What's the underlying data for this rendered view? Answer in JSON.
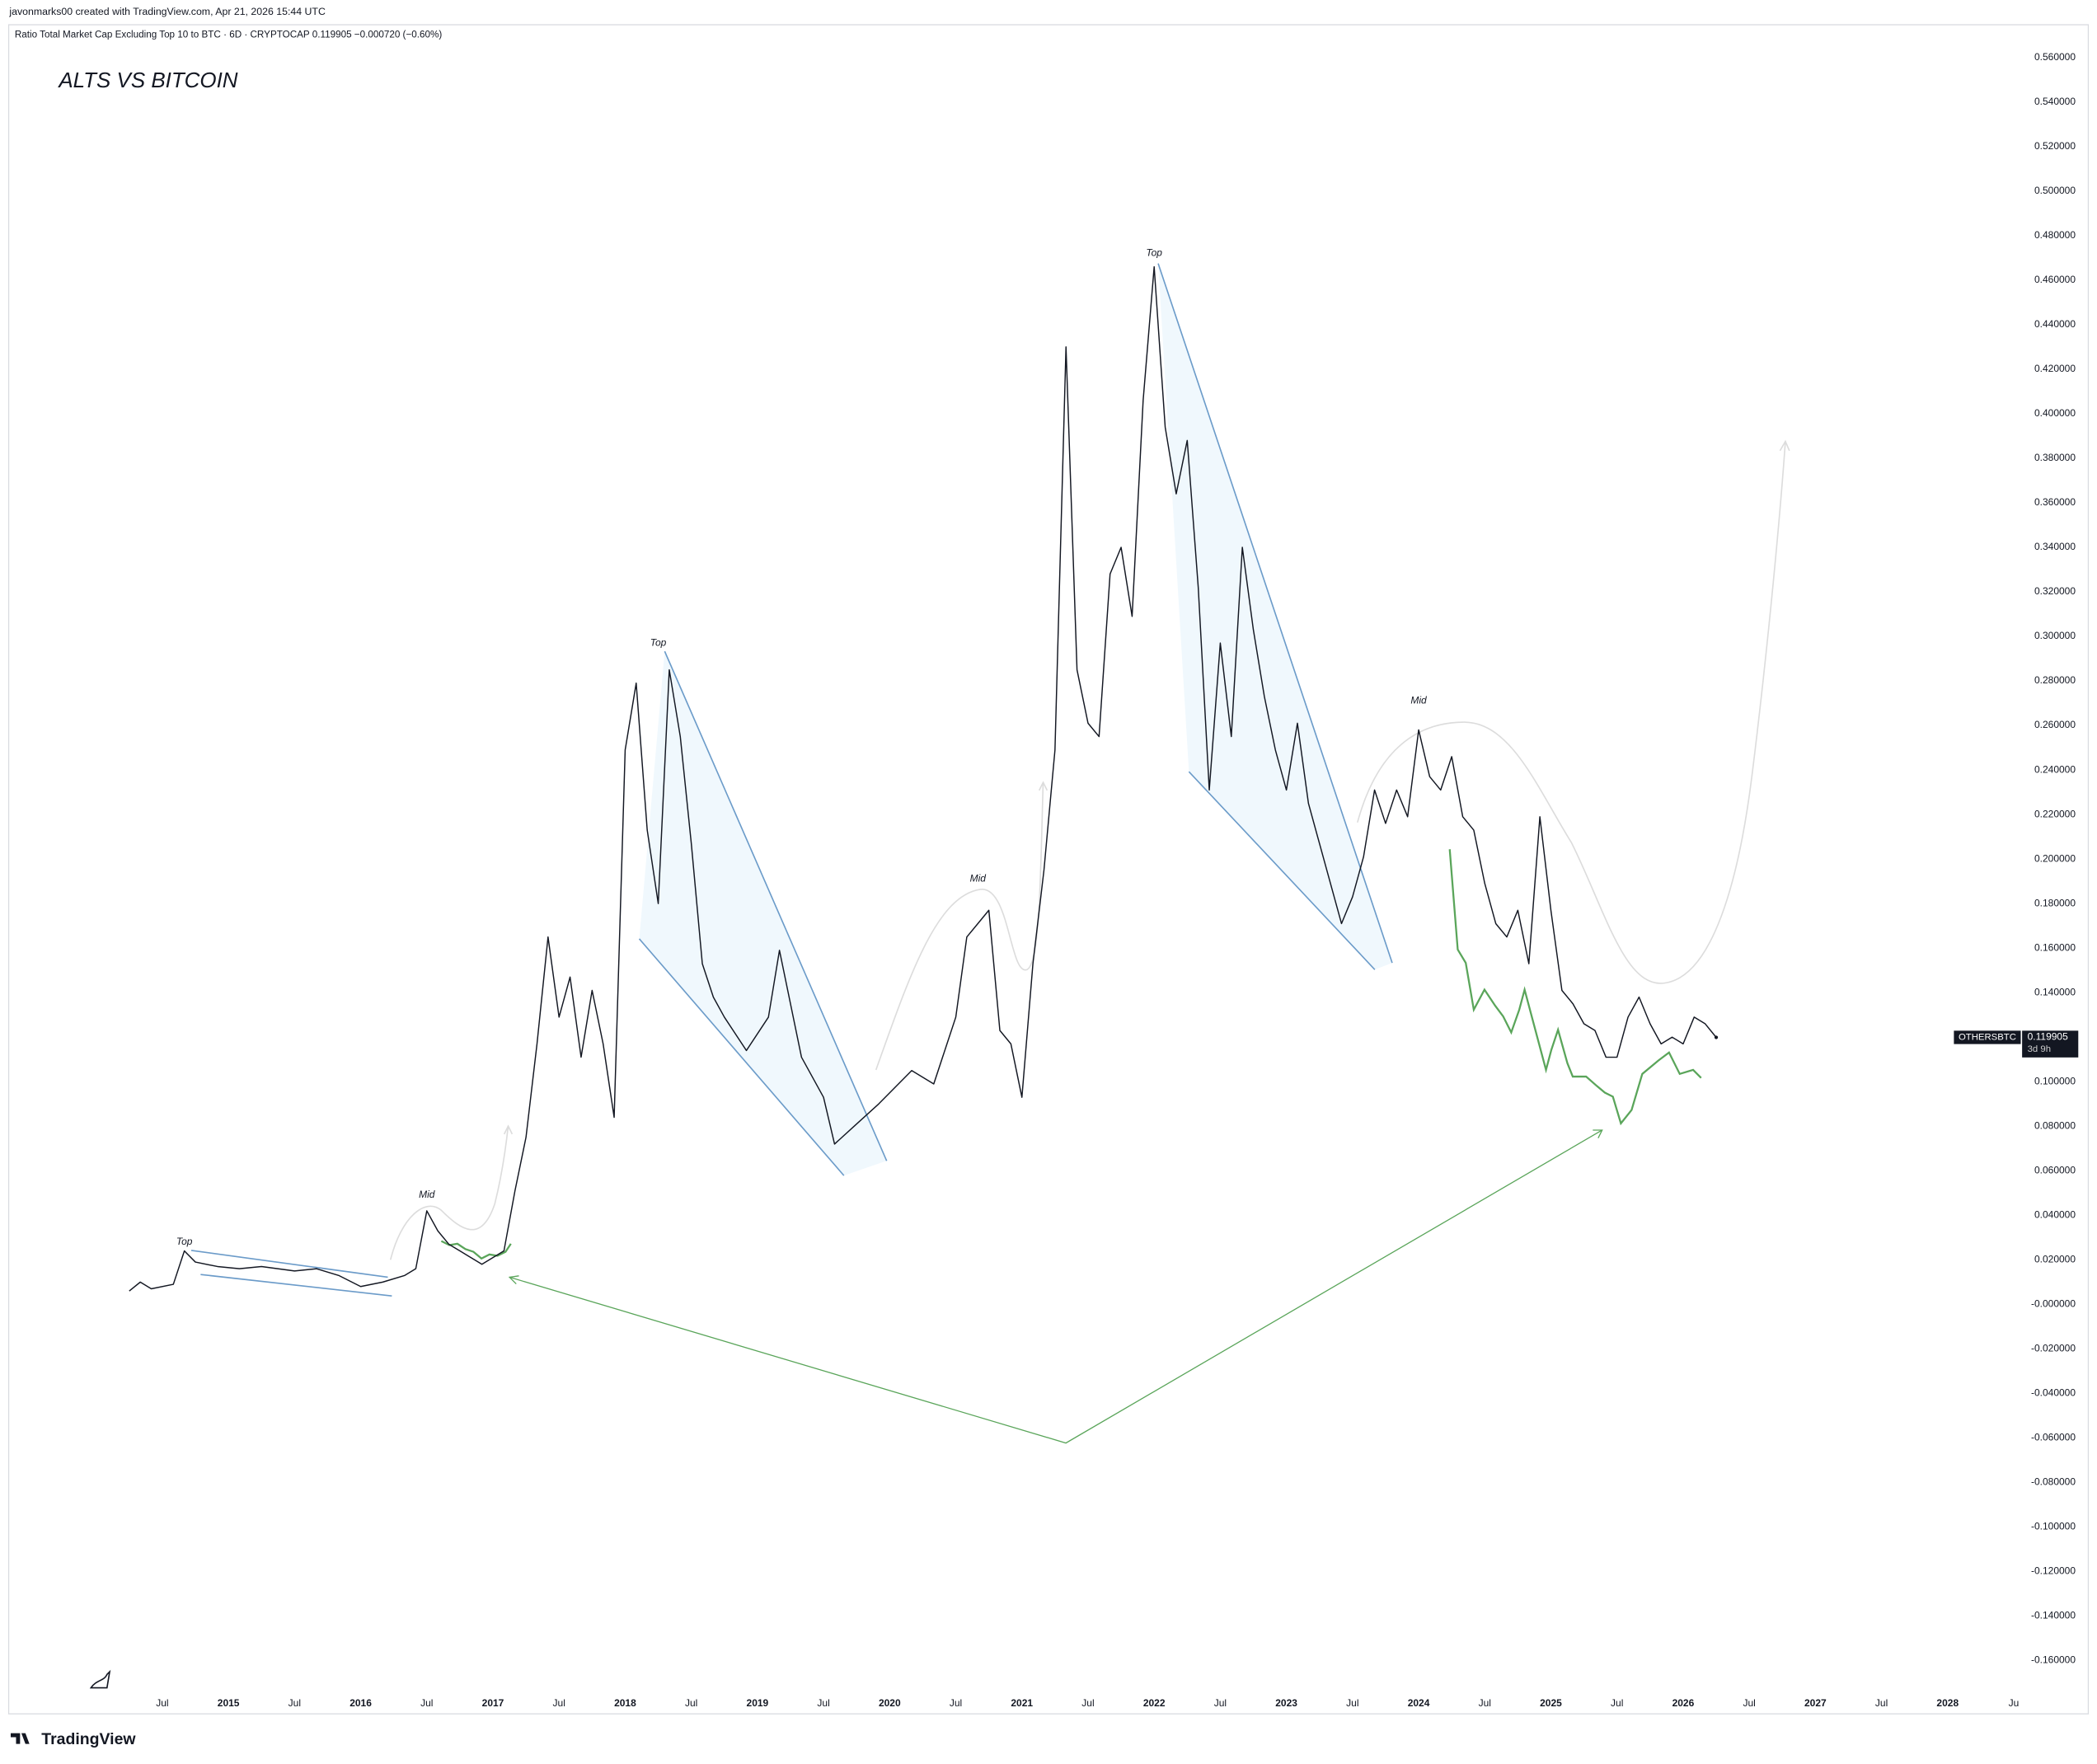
{
  "header": "javonmarks00 created with TradingView.com, Apr 21, 2026 15:44 UTC",
  "brand": "TradingView",
  "chart_data": {
    "type": "line",
    "title": "ALTS VS BITCOIN",
    "subtitle": "Ratio Total Market Cap Excluding Top 10 to BTC · 6D · CRYPTOCAP  0.119905  −0.000720 (−0.60%)",
    "countdown": "3d 9h",
    "x": [
      "2014-04",
      "2014-05",
      "2014-06",
      "2014-08",
      "2014-09",
      "2014-10",
      "2014-12",
      "2015-02",
      "2015-04",
      "2015-07",
      "2015-09",
      "2015-11",
      "2016-01",
      "2016-03",
      "2016-05",
      "2016-06",
      "2016-07",
      "2016-08",
      "2016-09",
      "2016-10",
      "2016-11",
      "2016-12",
      "2017-01",
      "2017-02",
      "2017-03",
      "2017-04",
      "2017-05",
      "2017-06",
      "2017-07",
      "2017-08",
      "2017-09",
      "2017-10",
      "2017-11",
      "2017-12",
      "2018-01",
      "2018-02",
      "2018-03",
      "2018-04",
      "2018-05",
      "2018-06",
      "2018-07",
      "2018-08",
      "2018-09",
      "2018-10",
      "2018-12",
      "2019-02",
      "2019-03",
      "2019-05",
      "2019-07",
      "2019-08",
      "2019-10",
      "2019-12",
      "2020-03",
      "2020-05",
      "2020-07",
      "2020-08",
      "2020-09",
      "2020-10",
      "2020-11",
      "2020-12",
      "2021-01",
      "2021-02",
      "2021-03",
      "2021-04",
      "2021-05",
      "2021-06",
      "2021-07",
      "2021-08",
      "2021-09",
      "2021-10",
      "2021-11",
      "2021-12",
      "2022-01",
      "2022-02",
      "2022-03",
      "2022-04",
      "2022-05",
      "2022-06",
      "2022-07",
      "2022-08",
      "2022-09",
      "2022-10",
      "2022-11",
      "2022-12",
      "2023-01",
      "2023-02",
      "2023-03",
      "2023-04",
      "2023-05",
      "2023-06",
      "2023-07",
      "2023-08",
      "2023-09",
      "2023-10",
      "2023-11",
      "2023-12",
      "2024-01",
      "2024-02",
      "2024-03",
      "2024-04",
      "2024-05",
      "2024-06",
      "2024-07",
      "2024-08",
      "2024-09",
      "2024-10",
      "2024-11",
      "2024-12",
      "2025-01",
      "2025-02",
      "2025-03",
      "2025-04",
      "2025-05",
      "2025-06",
      "2025-07",
      "2025-08",
      "2025-09",
      "2025-10",
      "2025-11",
      "2025-12",
      "2026-01",
      "2026-02",
      "2026-03",
      "2026-04"
    ],
    "series": [
      {
        "name": "OTHERSBTC",
        "color": "#131722",
        "values": [
          0.006,
          0.01,
          0.007,
          0.009,
          0.024,
          0.019,
          0.017,
          0.016,
          0.017,
          0.015,
          0.016,
          0.013,
          0.008,
          0.01,
          0.013,
          0.016,
          0.042,
          0.033,
          0.027,
          0.024,
          0.021,
          0.018,
          0.021,
          0.024,
          0.051,
          0.075,
          0.117,
          0.165,
          0.129,
          0.147,
          0.111,
          0.141,
          0.117,
          0.084,
          0.249,
          0.279,
          0.213,
          0.18,
          0.285,
          0.255,
          0.207,
          0.153,
          0.138,
          0.129,
          0.114,
          0.129,
          0.159,
          0.111,
          0.093,
          0.072,
          0.081,
          0.09,
          0.105,
          0.099,
          0.129,
          0.165,
          0.171,
          0.177,
          0.123,
          0.117,
          0.093,
          0.153,
          0.195,
          0.249,
          0.43,
          0.285,
          0.261,
          0.255,
          0.328,
          0.34,
          0.309,
          0.406,
          0.466,
          0.394,
          0.364,
          0.388,
          0.322,
          0.231,
          0.297,
          0.255,
          0.34,
          0.303,
          0.273,
          0.249,
          0.231,
          0.261,
          0.225,
          0.207,
          0.189,
          0.171,
          0.183,
          0.201,
          0.231,
          0.216,
          0.231,
          0.219,
          0.258,
          0.237,
          0.231,
          0.246,
          0.219,
          0.213,
          0.189,
          0.171,
          0.165,
          0.177,
          0.153,
          0.219,
          0.177,
          0.141,
          0.135,
          0.126,
          0.123,
          0.111,
          0.111,
          0.129,
          0.138,
          0.126,
          0.117,
          0.12,
          0.117,
          0.129,
          0.126,
          0.119905
        ]
      }
    ],
    "xlim": [
      "2013-05",
      "2028-08"
    ],
    "ylim": [
      -0.174,
      0.575
    ],
    "grid": false,
    "xticks": [
      {
        "value": "2014-07",
        "label": "Jul"
      },
      {
        "value": "2015-01",
        "label": "2015"
      },
      {
        "value": "2015-07",
        "label": "Jul"
      },
      {
        "value": "2016-01",
        "label": "2016"
      },
      {
        "value": "2016-07",
        "label": "Jul"
      },
      {
        "value": "2017-01",
        "label": "2017"
      },
      {
        "value": "2017-07",
        "label": "Jul"
      },
      {
        "value": "2018-01",
        "label": "2018"
      },
      {
        "value": "2018-07",
        "label": "Jul"
      },
      {
        "value": "2019-01",
        "label": "2019"
      },
      {
        "value": "2019-07",
        "label": "Jul"
      },
      {
        "value": "2020-01",
        "label": "2020"
      },
      {
        "value": "2020-07",
        "label": "Jul"
      },
      {
        "value": "2021-01",
        "label": "2021"
      },
      {
        "value": "2021-07",
        "label": "Jul"
      },
      {
        "value": "2022-01",
        "label": "2022"
      },
      {
        "value": "2022-07",
        "label": "Jul"
      },
      {
        "value": "2023-01",
        "label": "2023"
      },
      {
        "value": "2023-07",
        "label": "Jul"
      },
      {
        "value": "2024-01",
        "label": "2024"
      },
      {
        "value": "2024-07",
        "label": "Jul"
      },
      {
        "value": "2025-01",
        "label": "2025"
      },
      {
        "value": "2025-07",
        "label": "Jul"
      },
      {
        "value": "2026-01",
        "label": "2026"
      },
      {
        "value": "2026-07",
        "label": "Jul"
      },
      {
        "value": "2027-01",
        "label": "2027"
      },
      {
        "value": "2027-07",
        "label": "Jul"
      },
      {
        "value": "2028-01",
        "label": "2028"
      },
      {
        "value": "2028-07",
        "label": "Ju"
      }
    ],
    "yticks": [
      {
        "value": -0.16,
        "label": "-0.160000"
      },
      {
        "value": -0.14,
        "label": "-0.140000"
      },
      {
        "value": -0.12,
        "label": "-0.120000"
      },
      {
        "value": -0.1,
        "label": "-0.100000"
      },
      {
        "value": -0.08,
        "label": "-0.080000"
      },
      {
        "value": -0.06,
        "label": "-0.060000"
      },
      {
        "value": -0.04,
        "label": "-0.040000"
      },
      {
        "value": -0.02,
        "label": "-0.020000"
      },
      {
        "value": 0,
        "label": "-0.000000"
      },
      {
        "value": 0.02,
        "label": "0.020000"
      },
      {
        "value": 0.04,
        "label": "0.040000"
      },
      {
        "value": 0.06,
        "label": "0.060000"
      },
      {
        "value": 0.08,
        "label": "0.080000"
      },
      {
        "value": 0.1,
        "label": "0.100000"
      },
      {
        "value": 0.12,
        "label": "0.120000"
      },
      {
        "value": 0.14,
        "label": "0.140000"
      },
      {
        "value": 0.16,
        "label": "0.160000"
      },
      {
        "value": 0.18,
        "label": "0.180000"
      },
      {
        "value": 0.2,
        "label": "0.200000"
      },
      {
        "value": 0.22,
        "label": "0.220000"
      },
      {
        "value": 0.24,
        "label": "0.240000"
      },
      {
        "value": 0.26,
        "label": "0.260000"
      },
      {
        "value": 0.28,
        "label": "0.280000"
      },
      {
        "value": 0.3,
        "label": "0.300000"
      },
      {
        "value": 0.32,
        "label": "0.320000"
      },
      {
        "value": 0.34,
        "label": "0.340000"
      },
      {
        "value": 0.36,
        "label": "0.360000"
      },
      {
        "value": 0.38,
        "label": "0.380000"
      },
      {
        "value": 0.4,
        "label": "0.400000"
      },
      {
        "value": 0.42,
        "label": "0.420000"
      },
      {
        "value": 0.44,
        "label": "0.440000"
      },
      {
        "value": 0.46,
        "label": "0.460000"
      },
      {
        "value": 0.48,
        "label": "0.480000"
      },
      {
        "value": 0.5,
        "label": "0.500000"
      },
      {
        "value": 0.52,
        "label": "0.520000"
      },
      {
        "value": 0.54,
        "label": "0.540000"
      },
      {
        "value": 0.56,
        "label": "0.560000"
      }
    ],
    "annotations": [
      {
        "text": "Top",
        "x": "2014-09",
        "y": 0.028
      },
      {
        "text": "Mid",
        "x": "2016-07",
        "y": 0.049
      },
      {
        "text": "Top",
        "x": "2018-04",
        "y": 0.297
      },
      {
        "text": "Mid",
        "x": "2020-09",
        "y": 0.191
      },
      {
        "text": "Top",
        "x": "2022-01",
        "y": 0.472
      },
      {
        "text": "Mid",
        "x": "2024-01",
        "y": 0.271
      }
    ]
  }
}
